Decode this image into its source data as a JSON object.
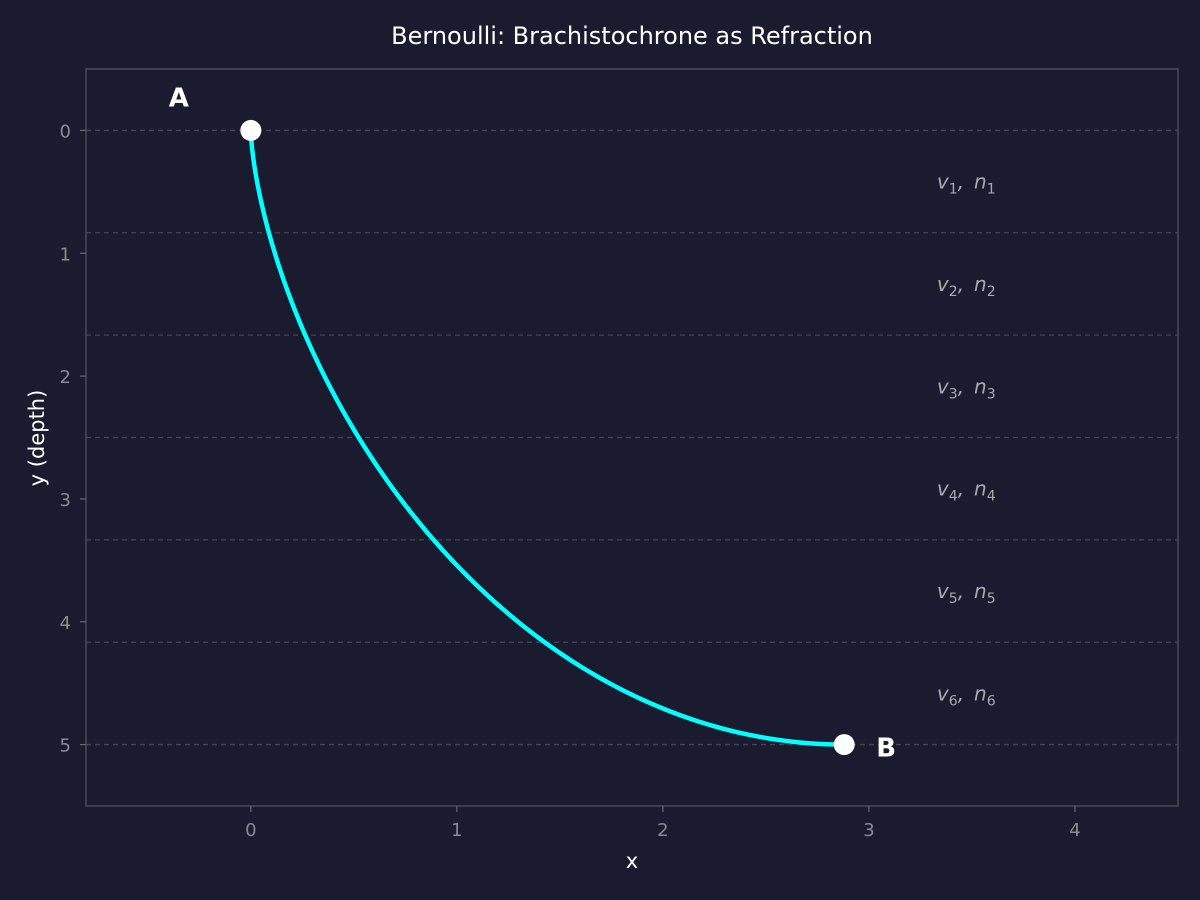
{
  "chart_data": {
    "type": "line",
    "title": "Bernoulli: Brachistochrone as Refraction",
    "xlabel": "x",
    "ylabel": "y (depth)",
    "xlim": [
      -0.8,
      4.5
    ],
    "ylim": [
      5.5,
      -0.5
    ],
    "y_inverted": true,
    "grid": false,
    "xticks": [
      0,
      1,
      2,
      3,
      4
    ],
    "yticks": [
      0,
      1,
      2,
      3,
      4,
      5
    ],
    "colors": {
      "background": "#1a1b2e",
      "curve": "#00ffff",
      "points": "#ffffff",
      "spine": "#4a4a55",
      "layer_lines": "#45455a"
    },
    "layer_boundaries": [
      0,
      0.8333,
      1.6667,
      2.5,
      3.3333,
      4.1667,
      5
    ],
    "layers": [
      {
        "v": "v",
        "v_sub": "1",
        "n": "n",
        "n_sub": "1",
        "sep": ",",
        "x": 3.33,
        "y": 0.4167
      },
      {
        "v": "v",
        "v_sub": "2",
        "n": "n",
        "n_sub": "2",
        "sep": ",",
        "x": 3.33,
        "y": 1.25
      },
      {
        "v": "v",
        "v_sub": "3",
        "n": "n",
        "n_sub": "3",
        "sep": ",",
        "x": 3.33,
        "y": 2.0833
      },
      {
        "v": "v",
        "v_sub": "4",
        "n": "n",
        "n_sub": "4",
        "sep": ",",
        "x": 3.33,
        "y": 2.9167
      },
      {
        "v": "v",
        "v_sub": "5",
        "n": "n",
        "n_sub": "5",
        "sep": ",",
        "x": 3.33,
        "y": 3.75
      },
      {
        "v": "v",
        "v_sub": "6",
        "n": "n",
        "n_sub": "6",
        "sep": ",",
        "x": 3.33,
        "y": 4.5833
      }
    ],
    "curve": {
      "kind": "cycloid",
      "radius": 2.5,
      "theta_end": 3.1416,
      "x": [
        0,
        0.05,
        0.2,
        0.45,
        0.75,
        1.1,
        1.5,
        1.95,
        2.4,
        2.88
      ],
      "y": [
        0,
        0.55,
        1.15,
        1.8,
        2.45,
        3.05,
        3.6,
        4.15,
        4.6,
        5.0
      ]
    },
    "points": [
      {
        "label": "A",
        "x": 0,
        "y": 0
      },
      {
        "label": "B",
        "x": 2.88,
        "y": 5.0
      }
    ]
  }
}
